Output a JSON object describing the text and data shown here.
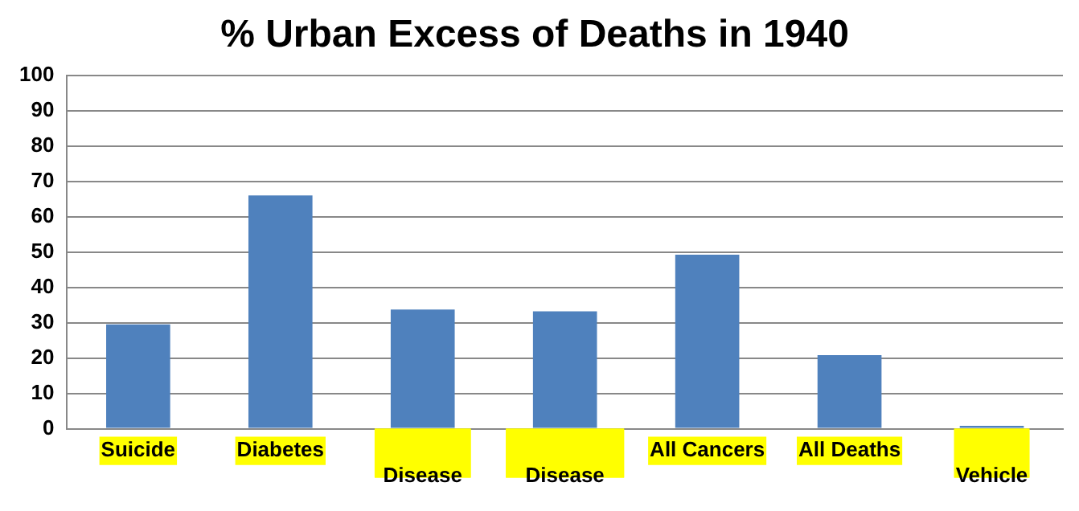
{
  "chart_data": {
    "type": "bar",
    "title": "% Urban Excess of Deaths in 1940",
    "categories": [
      "Suicide",
      "Diabetes",
      "Coronary Disease",
      "Other Heart Disease",
      "All Cancers",
      "All Deaths",
      "Motor Vehicle"
    ],
    "values": [
      29.5,
      66,
      33.7,
      33.2,
      49.2,
      20.8,
      0.8
    ],
    "color": "#4f81bd",
    "ylim": [
      0,
      100
    ],
    "yticks": [
      0,
      10,
      20,
      30,
      40,
      50,
      60,
      70,
      80,
      90,
      100
    ],
    "grid": "y",
    "legend": false
  }
}
